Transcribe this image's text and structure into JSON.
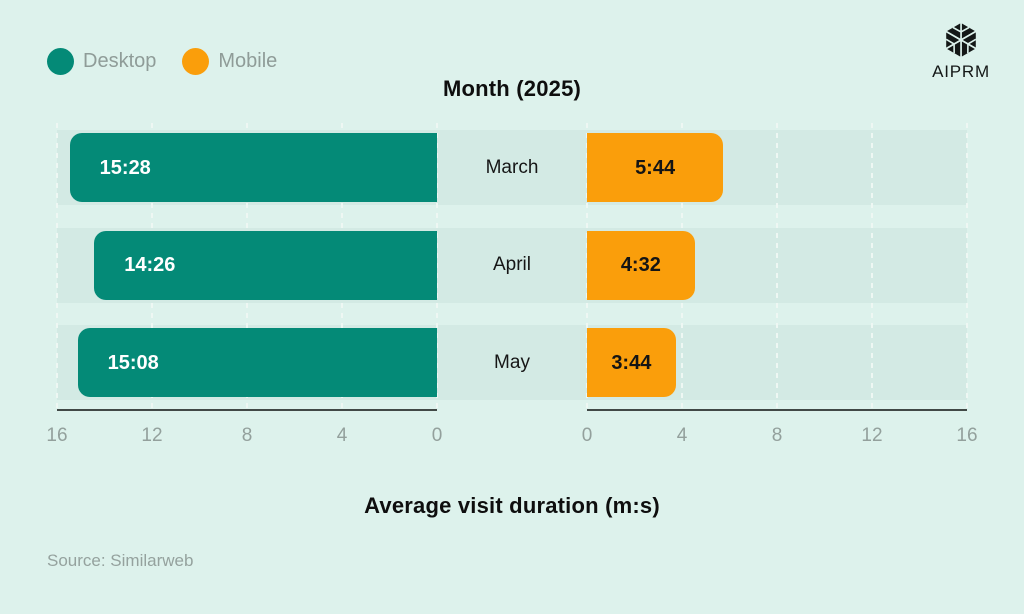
{
  "titles": {
    "top": "Month (2025)",
    "bottom": "Average visit duration (m:s)"
  },
  "legend": {
    "items": [
      {
        "label": "Desktop",
        "color": "#048a77"
      },
      {
        "label": "Mobile",
        "color": "#fa9e0b"
      }
    ]
  },
  "logo": {
    "text": "AIPRM",
    "icon": "aiprm-hexagon-logo"
  },
  "source": {
    "text": "Source: Similarweb"
  },
  "chart_data": {
    "type": "bar",
    "variant": "diverging-horizontal",
    "title": "Month (2025)",
    "xlabel": "Average visit duration (m:s)",
    "source": "Source: Similarweb",
    "categories": [
      "March",
      "April",
      "May"
    ],
    "series": [
      {
        "name": "Desktop",
        "side": "left",
        "color": "#048a77",
        "labels": [
          "15:28",
          "14:26",
          "15:08"
        ],
        "values_minutes": [
          15.4667,
          14.4333,
          15.1333
        ]
      },
      {
        "name": "Mobile",
        "side": "right",
        "color": "#fa9e0b",
        "labels": [
          "5:44",
          "4:32",
          "3:44"
        ],
        "values_minutes": [
          5.7333,
          4.5333,
          3.7333
        ]
      }
    ],
    "x_max": 16,
    "x_ticks_left": [
      16,
      12,
      8,
      4,
      0
    ],
    "x_ticks_right": [
      0,
      4,
      8,
      12,
      16
    ],
    "gridlines": "dashed-vertical",
    "legend_position": "top-left"
  }
}
